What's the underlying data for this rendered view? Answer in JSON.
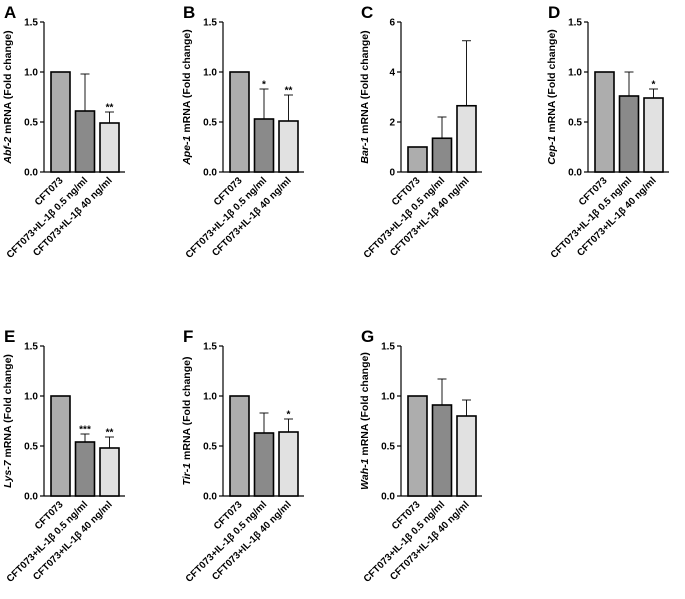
{
  "chart_data": [
    {
      "panel": "A",
      "type": "bar",
      "gene": "Abf-2",
      "ylabel_suffix": " mRNA (Fold change)",
      "categories": [
        "CFT073",
        "CFT073+IL-1β 0.5 ng/ml",
        "CFT073+IL-1β 40 ng/ml"
      ],
      "values": [
        1.0,
        0.61,
        0.49
      ],
      "errors": [
        0,
        0.37,
        0.11
      ],
      "significance": [
        "",
        "",
        "**"
      ],
      "ylim": [
        0,
        1.5
      ],
      "yticks": [
        "0.0",
        "0.5",
        "1.0",
        "1.5"
      ],
      "ytick_values": [
        0,
        0.5,
        1.0,
        1.5
      ]
    },
    {
      "panel": "B",
      "type": "bar",
      "gene": "Ape-1",
      "ylabel_suffix": " mRNA (Fold change)",
      "categories": [
        "CFT073",
        "CFT073+IL-1β 0.5 ng/ml",
        "CFT073+IL-1β 40 ng/ml"
      ],
      "values": [
        1.0,
        0.53,
        0.51
      ],
      "errors": [
        0,
        0.3,
        0.26
      ],
      "significance": [
        "",
        "*",
        "**"
      ],
      "ylim": [
        0,
        1.5
      ],
      "yticks": [
        "0.0",
        "0.5",
        "1.0",
        "1.5"
      ],
      "ytick_values": [
        0,
        0.5,
        1.0,
        1.5
      ]
    },
    {
      "panel": "C",
      "type": "bar",
      "gene": "Bar-1",
      "ylabel_suffix": " mRNA (Fold change)",
      "categories": [
        "CFT073",
        "CFT073+IL-1β 0.5 ng/ml",
        "CFT073+IL-1β 40 ng/ml"
      ],
      "values": [
        1.0,
        1.35,
        2.65
      ],
      "errors": [
        0,
        0.85,
        2.6
      ],
      "significance": [
        "",
        "",
        ""
      ],
      "ylim": [
        0,
        6
      ],
      "yticks": [
        "0",
        "2",
        "4",
        "6"
      ],
      "ytick_values": [
        0,
        2,
        4,
        6
      ]
    },
    {
      "panel": "D",
      "type": "bar",
      "gene": "Cep-1",
      "ylabel_suffix": " mRNA (Fold change)",
      "categories": [
        "CFT073",
        "CFT073+IL-1β 0.5 ng/ml",
        "CFT073+IL-1β 40 ng/ml"
      ],
      "values": [
        1.0,
        0.76,
        0.74
      ],
      "errors": [
        0,
        0.24,
        0.09
      ],
      "significance": [
        "",
        "",
        "*"
      ],
      "ylim": [
        0,
        1.5
      ],
      "yticks": [
        "0.0",
        "0.5",
        "1.0",
        "1.5"
      ],
      "ytick_values": [
        0,
        0.5,
        1.0,
        1.5
      ]
    },
    {
      "panel": "E",
      "type": "bar",
      "gene": "Lys-7",
      "ylabel_suffix": " mRNA (Fold change)",
      "categories": [
        "CFT073",
        "CFT073+IL-1β 0.5 ng/ml",
        "CFT073+IL-1β 40 ng/ml"
      ],
      "values": [
        1.0,
        0.54,
        0.48
      ],
      "errors": [
        0,
        0.08,
        0.11
      ],
      "significance": [
        "",
        "***",
        "**"
      ],
      "ylim": [
        0,
        1.5
      ],
      "yticks": [
        "0.0",
        "0.5",
        "1.0",
        "1.5"
      ],
      "ytick_values": [
        0,
        0.5,
        1.0,
        1.5
      ]
    },
    {
      "panel": "F",
      "type": "bar",
      "gene": "Tir-1",
      "ylabel_suffix": " mRNA (Fold change)",
      "categories": [
        "CFT073",
        "CFT073+IL-1β 0.5 ng/ml",
        "CFT073+IL-1β 40 ng/ml"
      ],
      "values": [
        1.0,
        0.63,
        0.64
      ],
      "errors": [
        0,
        0.2,
        0.13
      ],
      "significance": [
        "",
        "",
        "*"
      ],
      "ylim": [
        0,
        1.5
      ],
      "yticks": [
        "0.0",
        "0.5",
        "1.0",
        "1.5"
      ],
      "ytick_values": [
        0,
        0.5,
        1.0,
        1.5
      ]
    },
    {
      "panel": "G",
      "type": "bar",
      "gene": "Wah-1",
      "ylabel_suffix": " mRNA (Fold change)",
      "categories": [
        "CFT073",
        "CFT073+IL-1β 0.5 ng/ml",
        "CFT073+IL-1β 40 ng/ml"
      ],
      "values": [
        1.0,
        0.91,
        0.8
      ],
      "errors": [
        0,
        0.26,
        0.16
      ],
      "significance": [
        "",
        "",
        ""
      ],
      "ylim": [
        0,
        1.5
      ],
      "yticks": [
        "0.0",
        "0.5",
        "1.0",
        "1.5"
      ],
      "ytick_values": [
        0,
        0.5,
        1.0,
        1.5
      ]
    }
  ],
  "colors": {
    "bars": [
      "#adadad",
      "#8a8a8a",
      "#e1e1e1"
    ],
    "stroke": "#000000"
  }
}
